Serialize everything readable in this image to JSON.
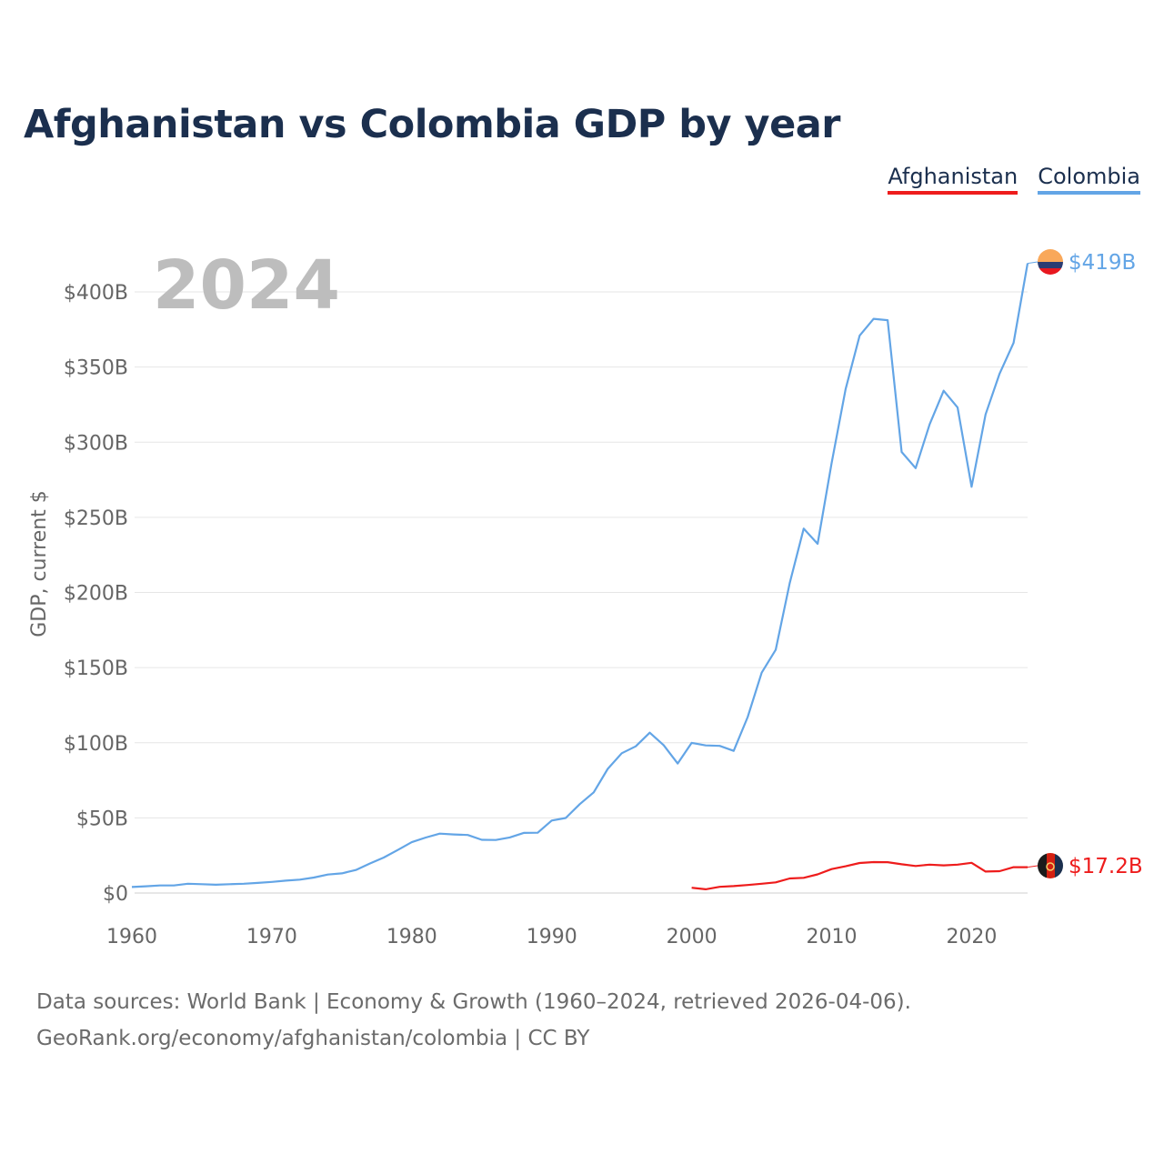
{
  "page": {
    "title": "Afghanistan vs Colombia GDP by year",
    "year_label": "2024",
    "footer_line1": "Data sources: World Bank | Economy & Growth (1960–2024, retrieved 2026-04-06).",
    "footer_line2": "GeoRank.org/economy/afghanistan/colombia | CC BY"
  },
  "colors": {
    "title": "#1b2f4e",
    "afghanistan": "#ee1c1c",
    "colombia": "#63a5e6",
    "axis_text": "#666666",
    "grid": "#e6e6e6",
    "year_label": "#bdbdbd"
  },
  "chart_data": {
    "type": "line",
    "title": "Afghanistan vs Colombia GDP by year",
    "xlabel": "",
    "ylabel": "GDP, current $",
    "xlim": [
      1960,
      2024
    ],
    "ylim": [
      0,
      420
    ],
    "unit": "billion USD",
    "x_ticks": [
      1960,
      1970,
      1980,
      1990,
      2000,
      2010,
      2020
    ],
    "y_ticks": [
      0,
      50,
      100,
      150,
      200,
      250,
      300,
      350,
      400
    ],
    "y_tick_labels": [
      "$0",
      "$50B",
      "$100B",
      "$150B",
      "$200B",
      "$250B",
      "$300B",
      "$350B",
      "$400B"
    ],
    "legend": [
      "Afghanistan",
      "Colombia"
    ],
    "series": [
      {
        "name": "Colombia",
        "color": "#63a5e6",
        "end_label": "$419B",
        "x": [
          1960,
          1961,
          1962,
          1963,
          1964,
          1965,
          1966,
          1967,
          1968,
          1969,
          1970,
          1971,
          1972,
          1973,
          1974,
          1975,
          1976,
          1977,
          1978,
          1979,
          1980,
          1981,
          1982,
          1983,
          1984,
          1985,
          1986,
          1987,
          1988,
          1989,
          1990,
          1991,
          1992,
          1993,
          1994,
          1995,
          1996,
          1997,
          1998,
          1999,
          2000,
          2001,
          2002,
          2003,
          2004,
          2005,
          2006,
          2007,
          2008,
          2009,
          2010,
          2011,
          2012,
          2013,
          2014,
          2015,
          2016,
          2017,
          2018,
          2019,
          2020,
          2021,
          2022,
          2023,
          2024
        ],
        "values": [
          4.0,
          4.5,
          5.0,
          5.0,
          6.2,
          5.9,
          5.5,
          5.9,
          6.2,
          6.7,
          7.4,
          8.2,
          8.9,
          10.3,
          12.3,
          13.1,
          15.3,
          19.6,
          23.6,
          28.6,
          33.8,
          36.9,
          39.5,
          39.0,
          38.6,
          35.4,
          35.3,
          37.0,
          40.0,
          40.1,
          48.2,
          49.9,
          59.1,
          67.0,
          82.6,
          93.0,
          97.6,
          106.7,
          98.4,
          86.2,
          99.9,
          98.2,
          97.9,
          94.6,
          117.1,
          146.6,
          161.8,
          206.2,
          242.5,
          232.4,
          286.1,
          335.4,
          370.9,
          382.1,
          381.2,
          293.5,
          282.7,
          311.9,
          334.2,
          323.1,
          270.3,
          318.5,
          345.6,
          366.1,
          419.0
        ]
      },
      {
        "name": "Afghanistan",
        "color": "#ee1c1c",
        "end_label": "$17.2B",
        "x": [
          2000,
          2001,
          2002,
          2003,
          2004,
          2005,
          2006,
          2007,
          2008,
          2009,
          2010,
          2011,
          2012,
          2013,
          2014,
          2015,
          2016,
          2017,
          2018,
          2019,
          2020,
          2021,
          2022,
          2023,
          2024
        ],
        "values": [
          3.5,
          2.5,
          4.1,
          4.6,
          5.3,
          6.2,
          7.1,
          9.7,
          10.1,
          12.4,
          15.9,
          17.8,
          20.0,
          20.6,
          20.5,
          19.1,
          18.0,
          18.9,
          18.4,
          18.9,
          20.1,
          14.3,
          14.5,
          17.2,
          17.2
        ]
      }
    ]
  }
}
